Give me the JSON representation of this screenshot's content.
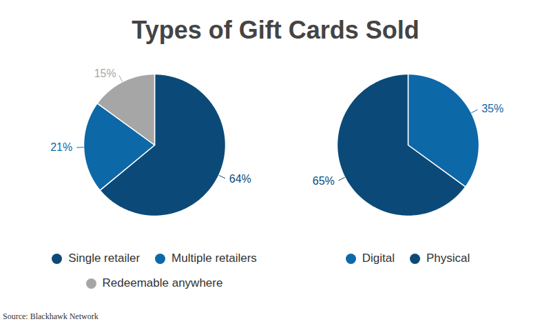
{
  "title": "Types of Gift Cards Sold",
  "source": "Source: Blackhawk Network",
  "chart_data": [
    {
      "type": "pie",
      "categories": [
        "Single retailer",
        "Multiple retailers",
        "Redeemable anywhere"
      ],
      "values": [
        64,
        21,
        15
      ],
      "value_labels": [
        "64%",
        "21%",
        "15%"
      ],
      "colors": [
        "#0b4a78",
        "#0d68a8",
        "#a6a6a6"
      ],
      "data_labels": true,
      "legend": "bottom"
    },
    {
      "type": "pie",
      "categories": [
        "Digital",
        "Physical"
      ],
      "values": [
        35,
        65
      ],
      "value_labels": [
        "35%",
        "65%"
      ],
      "colors": [
        "#0d68a8",
        "#0b4a78"
      ],
      "data_labels": true,
      "legend": "bottom"
    }
  ]
}
